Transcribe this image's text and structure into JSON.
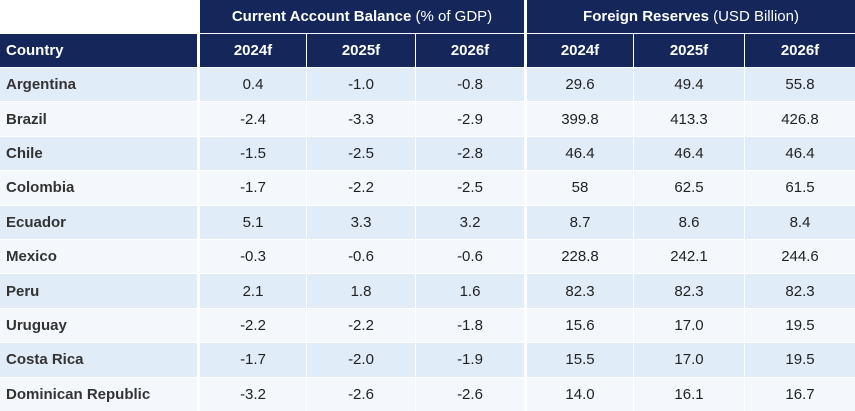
{
  "header": {
    "group1_bold": "Current Account Balance",
    "group1_light": " (% of GDP)",
    "group2_bold": "Foreign Reserves",
    "group2_light": " (USD Billion)",
    "columns": [
      "Country",
      "2024f",
      "2025f",
      "2026f",
      "2024f",
      "2025f",
      "2026f"
    ]
  },
  "rows": [
    {
      "country": "Argentina",
      "values": [
        "0.4",
        "-1.0",
        "-0.8",
        "29.6",
        "49.4",
        "55.8"
      ]
    },
    {
      "country": "Brazil",
      "values": [
        "-2.4",
        "-3.3",
        "-2.9",
        "399.8",
        "413.3",
        "426.8"
      ]
    },
    {
      "country": "Chile",
      "values": [
        "-1.5",
        "-2.5",
        "-2.8",
        "46.4",
        "46.4",
        "46.4"
      ]
    },
    {
      "country": "Colombia",
      "values": [
        "-1.7",
        "-2.2",
        "-2.5",
        "58",
        "62.5",
        "61.5"
      ]
    },
    {
      "country": "Ecuador",
      "values": [
        "5.1",
        "3.3",
        "3.2",
        "8.7",
        "8.6",
        "8.4"
      ]
    },
    {
      "country": "Mexico",
      "values": [
        "-0.3",
        "-0.6",
        "-0.6",
        "228.8",
        "242.1",
        "244.6"
      ]
    },
    {
      "country": "Peru",
      "values": [
        "2.1",
        "1.8",
        "1.6",
        "82.3",
        "82.3",
        "82.3"
      ]
    },
    {
      "country": "Uruguay",
      "values": [
        "-2.2",
        "-2.2",
        "-1.8",
        "15.6",
        "17.0",
        "19.5"
      ]
    },
    {
      "country": "Costa Rica",
      "values": [
        "-1.7",
        "-2.0",
        "-1.9",
        "15.5",
        "17.0",
        "19.5"
      ]
    },
    {
      "country": "Dominican Republic",
      "values": [
        "-3.2",
        "-2.6",
        "-2.6",
        "14.0",
        "16.1",
        "16.7"
      ]
    }
  ],
  "colors": {
    "header_bg": "#15275a",
    "row_odd_bg": "#e0ecf8",
    "row_even_bg": "#f4f8fd"
  }
}
